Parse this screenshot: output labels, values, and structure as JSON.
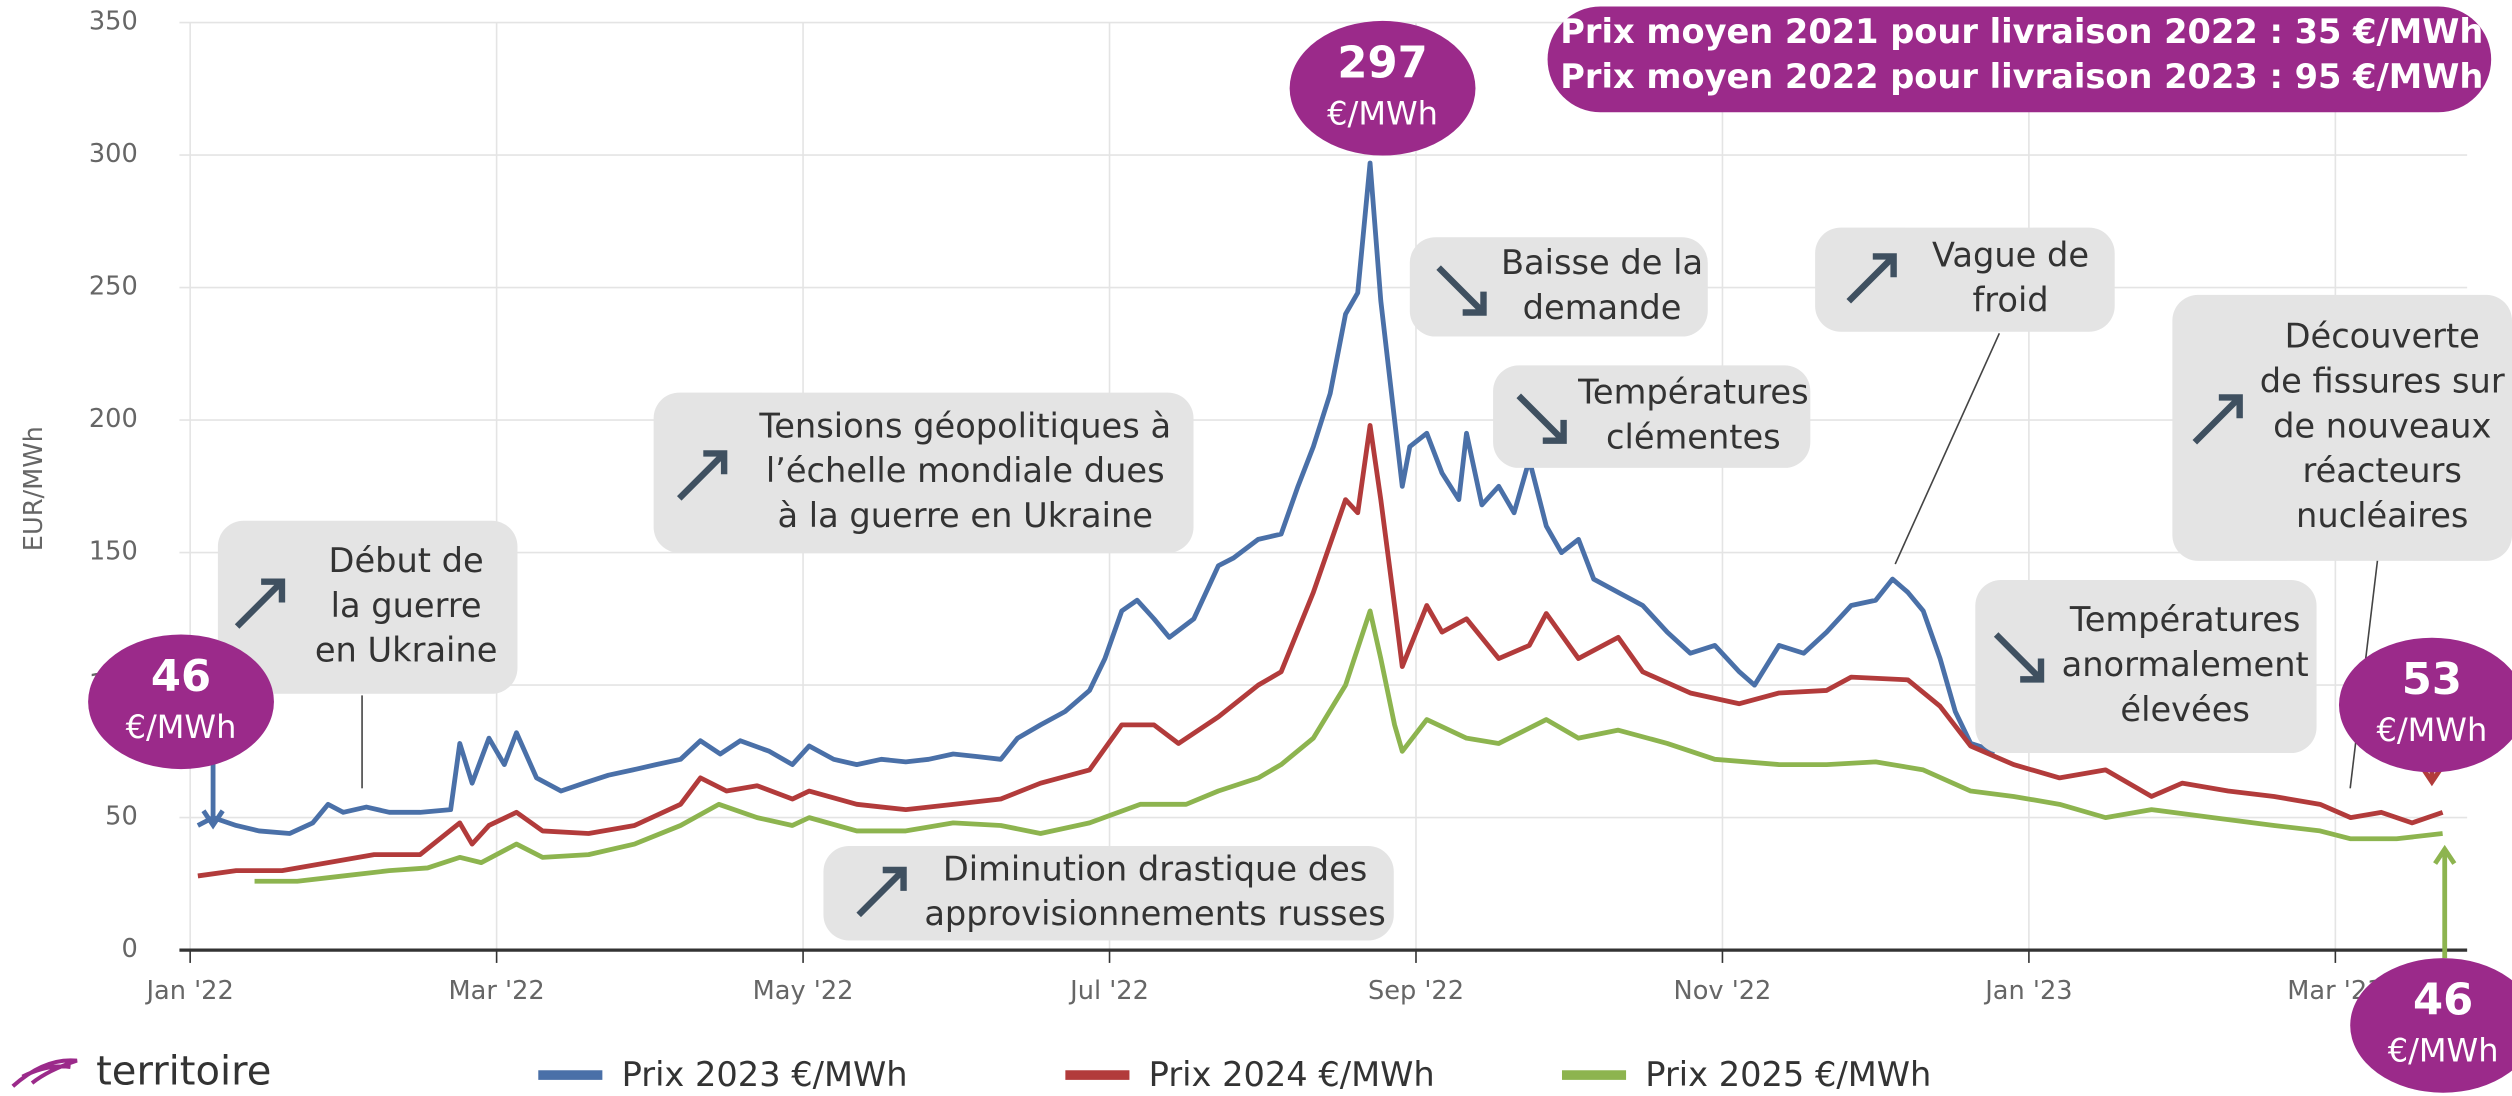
{
  "chart_data": {
    "type": "line",
    "header": [
      "Prix moyen 2021 pour livraison 2022 : 35 €/MWh",
      "Prix moyen 2022 pour livraison 2023 : 95 €/MWh"
    ],
    "ylabel": "EUR/MWh",
    "logo": "territoire",
    "ylim": [
      0,
      350
    ],
    "yticks": [
      0,
      50,
      100,
      150,
      200,
      250,
      300,
      350
    ],
    "xlim": [
      -0.07,
      14.86
    ],
    "xticks": [
      {
        "value": 0,
        "label": "Jan '22"
      },
      {
        "value": 2,
        "label": "Mar '22"
      },
      {
        "value": 4,
        "label": "May '22"
      },
      {
        "value": 6,
        "label": "Jul '22"
      },
      {
        "value": 8,
        "label": "Sep '22"
      },
      {
        "value": 10,
        "label": "Nov '22"
      },
      {
        "value": 12,
        "label": "Jan '23"
      },
      {
        "value": 14,
        "label": "Mar '23"
      }
    ],
    "grid": true,
    "series": [
      {
        "name": "Prix 2023 €/MWh",
        "color": "#4a70a8",
        "x": [
          0.05,
          0.15,
          0.3,
          0.45,
          0.65,
          0.8,
          0.9,
          1.0,
          1.15,
          1.3,
          1.5,
          1.7,
          1.76,
          1.84,
          1.95,
          2.05,
          2.13,
          2.26,
          2.42,
          2.57,
          2.73,
          2.89,
          3.04,
          3.2,
          3.33,
          3.46,
          3.59,
          3.78,
          3.93,
          4.04,
          4.2,
          4.35,
          4.51,
          4.67,
          4.82,
          4.98,
          5.14,
          5.29,
          5.4,
          5.55,
          5.71,
          5.87,
          5.97,
          6.08,
          6.18,
          6.29,
          6.39,
          6.55,
          6.71,
          6.81,
          6.97,
          7.12,
          7.23,
          7.33,
          7.44,
          7.54,
          7.62,
          7.7,
          7.77,
          7.86,
          7.91,
          7.96,
          8.07,
          8.17,
          8.28,
          8.33,
          8.43,
          8.54,
          8.64,
          8.74,
          8.85,
          8.95,
          9.06,
          9.16,
          9.32,
          9.48,
          9.64,
          9.79,
          9.95,
          10.11,
          10.21,
          10.37,
          10.53,
          10.68,
          10.84,
          11.0,
          11.11,
          11.21,
          11.31,
          11.42,
          11.52,
          11.62,
          11.78
        ],
        "values": [
          47,
          50,
          47,
          45,
          44,
          48,
          55,
          52,
          54,
          52,
          52,
          53,
          78,
          63,
          80,
          70,
          82,
          65,
          60,
          63,
          66,
          68,
          70,
          72,
          79,
          74,
          79,
          75,
          70,
          77,
          72,
          70,
          72,
          71,
          72,
          74,
          73,
          72,
          80,
          85,
          90,
          98,
          110,
          128,
          132,
          125,
          118,
          125,
          145,
          148,
          155,
          157,
          175,
          190,
          210,
          240,
          248,
          297,
          245,
          200,
          175,
          190,
          195,
          180,
          170,
          195,
          168,
          175,
          165,
          185,
          160,
          150,
          155,
          140,
          135,
          130,
          120,
          112,
          115,
          105,
          100,
          115,
          112,
          120,
          130,
          132,
          140,
          135,
          128,
          110,
          90,
          78,
          75
        ]
      },
      {
        "name": "Prix 2024 €/MWh",
        "color": "#b23b3b",
        "x": [
          0.05,
          0.3,
          0.6,
          0.9,
          1.2,
          1.5,
          1.76,
          1.84,
          1.95,
          2.13,
          2.3,
          2.6,
          2.9,
          3.2,
          3.33,
          3.5,
          3.7,
          3.93,
          4.04,
          4.35,
          4.67,
          4.98,
          5.29,
          5.55,
          5.87,
          6.08,
          6.29,
          6.45,
          6.71,
          6.97,
          7.12,
          7.33,
          7.54,
          7.62,
          7.7,
          7.77,
          7.86,
          7.91,
          8.07,
          8.17,
          8.33,
          8.54,
          8.74,
          8.85,
          9.06,
          9.32,
          9.48,
          9.79,
          10.11,
          10.37,
          10.68,
          10.84,
          11.21,
          11.42,
          11.62,
          11.9,
          12.2,
          12.5,
          12.8,
          13.0,
          13.3,
          13.6,
          13.9,
          14.1,
          14.3,
          14.5,
          14.7
        ],
        "values": [
          28,
          30,
          30,
          33,
          36,
          36,
          48,
          40,
          47,
          52,
          45,
          44,
          47,
          55,
          65,
          60,
          62,
          57,
          60,
          55,
          53,
          55,
          57,
          63,
          68,
          85,
          85,
          78,
          88,
          100,
          105,
          135,
          170,
          165,
          198,
          170,
          130,
          107,
          130,
          120,
          125,
          110,
          115,
          127,
          110,
          118,
          105,
          97,
          93,
          97,
          98,
          103,
          102,
          92,
          77,
          70,
          65,
          68,
          58,
          63,
          60,
          58,
          55,
          50,
          52,
          48,
          52
        ]
      },
      {
        "name": "Prix 2025 €/MWh",
        "color": "#8db44f",
        "x": [
          0.42,
          0.7,
          1.0,
          1.3,
          1.55,
          1.76,
          1.9,
          2.13,
          2.3,
          2.6,
          2.9,
          3.2,
          3.45,
          3.7,
          3.93,
          4.04,
          4.35,
          4.67,
          4.98,
          5.29,
          5.55,
          5.87,
          6.2,
          6.5,
          6.71,
          6.97,
          7.12,
          7.33,
          7.54,
          7.7,
          7.77,
          7.86,
          7.91,
          8.07,
          8.33,
          8.54,
          8.85,
          9.06,
          9.32,
          9.64,
          9.95,
          10.37,
          10.68,
          11.0,
          11.31,
          11.62,
          11.9,
          12.2,
          12.5,
          12.8,
          13.2,
          13.6,
          13.9,
          14.1,
          14.4,
          14.7
        ],
        "values": [
          26,
          26,
          28,
          30,
          31,
          35,
          33,
          40,
          35,
          36,
          40,
          47,
          55,
          50,
          47,
          50,
          45,
          45,
          48,
          47,
          44,
          48,
          55,
          55,
          60,
          65,
          70,
          80,
          100,
          128,
          110,
          85,
          75,
          87,
          80,
          78,
          87,
          80,
          83,
          78,
          72,
          70,
          70,
          71,
          68,
          60,
          58,
          55,
          50,
          53,
          50,
          47,
          45,
          42,
          42,
          44
        ]
      }
    ],
    "callouts": [
      {
        "value": "297",
        "unit": "€/MWh"
      },
      {
        "value": "46",
        "unit": "€/MWh"
      },
      {
        "value": "53",
        "unit": "€/MWh"
      },
      {
        "value": "46",
        "unit": "€/MWh"
      }
    ],
    "annotations": [
      {
        "lines": [
          "Début de",
          "la guerre",
          "en Ukraine"
        ]
      },
      {
        "lines": [
          "Tensions géopolitiques à",
          "l’échelle mondiale dues",
          "à la guerre en Ukraine"
        ]
      },
      {
        "lines": [
          "Baisse de la",
          "demande"
        ]
      },
      {
        "lines": [
          "Températures",
          "clémentes"
        ]
      },
      {
        "lines": [
          "Vague de",
          "froid"
        ]
      },
      {
        "lines": [
          "Découverte",
          "de fissures sur",
          "de nouveaux",
          "réacteurs",
          "nucléaires"
        ]
      },
      {
        "lines": [
          "Températures",
          "anormalement",
          "élevées"
        ]
      },
      {
        "lines": [
          "Diminution drastique des",
          "approvisionnements russes"
        ]
      }
    ]
  }
}
